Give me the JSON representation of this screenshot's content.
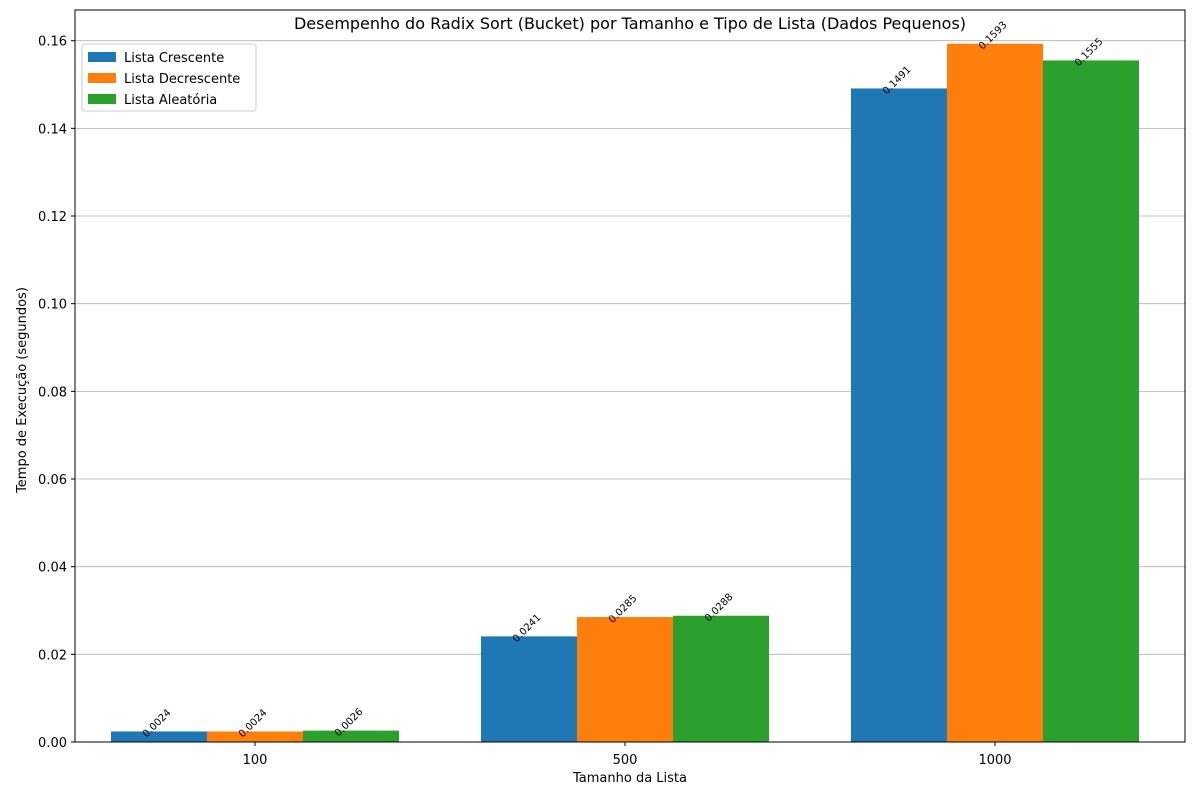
{
  "chart_data": {
    "type": "bar",
    "title": "Desempenho do Radix Sort (Bucket) por Tamanho e Tipo de Lista (Dados Pequenos)",
    "xlabel": "Tamanho da Lista",
    "ylabel": "Tempo de Execução (segundos)",
    "categories": [
      "100",
      "500",
      "1000"
    ],
    "series": [
      {
        "name": "Lista Crescente",
        "color": "#1f77b4",
        "values": [
          0.0024,
          0.0241,
          0.1491
        ],
        "labels": [
          "0.0024",
          "0.0241",
          "0.1491"
        ]
      },
      {
        "name": "Lista Decrescente",
        "color": "#ff7f0e",
        "values": [
          0.0024,
          0.0285,
          0.1593
        ],
        "labels": [
          "0.0024",
          "0.0285",
          "0.1593"
        ]
      },
      {
        "name": "Lista Aleatória",
        "color": "#2ca02c",
        "values": [
          0.0026,
          0.0288,
          0.1555
        ],
        "labels": [
          "0.0026",
          "0.0288",
          "0.1555"
        ]
      }
    ],
    "ylim": [
      0,
      0.167
    ],
    "yticks": [
      0.0,
      0.02,
      0.04,
      0.06,
      0.08,
      0.1,
      0.12,
      0.14,
      0.16
    ],
    "ytick_labels": [
      "0.00",
      "0.02",
      "0.04",
      "0.06",
      "0.08",
      "0.10",
      "0.12",
      "0.14",
      "0.16"
    ],
    "grid": "y-major",
    "legend_position": "upper-left"
  }
}
